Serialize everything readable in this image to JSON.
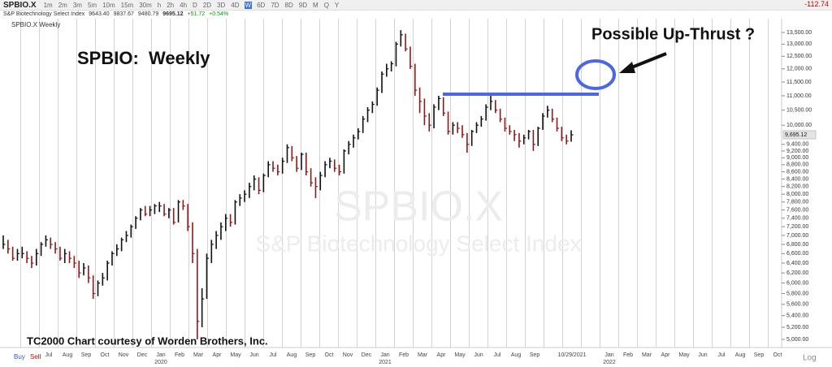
{
  "header": {
    "symbol": "SPBIO.X",
    "timeframes": [
      "1m",
      "2m",
      "3m",
      "5m",
      "10m",
      "15m",
      "30m",
      "h",
      "2h",
      "4h",
      "D",
      "2D",
      "3D",
      "4D",
      "W",
      "6D",
      "7D",
      "8D",
      "9D",
      "M",
      "Q",
      "Y"
    ],
    "selected_timeframe": "W",
    "change_right": "-112.74",
    "index_name": "S&P Biotechnology Select Index",
    "open": "9643.40",
    "high": "9837.67",
    "low": "9480.79",
    "last": "9695.12",
    "change": "+51.72",
    "change_pct": "+0.54%",
    "chart_label": "SPBIO.X Weekly"
  },
  "footer": {
    "buy": "Buy",
    "sell": "Sell",
    "scale": "Log"
  },
  "chart_data": {
    "type": "hlc",
    "log_scale": true,
    "watermark": "SPBIO.X",
    "watermark_subtitle": "S&P Biotechnology Select Index",
    "annotations": [
      "SPBIO:  Weekly",
      "Possible Up-Thrust ?",
      "TC2000 Chart courtesy of Worden Brothers, Inc."
    ],
    "up_color": "#111111",
    "down_color": "#8b1a1a",
    "high": [
      7000,
      6900,
      6750,
      6700,
      6750,
      6650,
      6550,
      6700,
      6850,
      7000,
      6950,
      6850,
      6750,
      6700,
      6650,
      6550,
      6450,
      6400,
      6350,
      6150,
      6050,
      6200,
      6450,
      6650,
      6800,
      6950,
      7100,
      7250,
      7450,
      7650,
      7700,
      7700,
      7750,
      7800,
      7750,
      7650,
      7650,
      7850,
      7850,
      7750,
      7300,
      6700,
      5900,
      6600,
      6900,
      7100,
      7300,
      7500,
      7500,
      7850,
      8000,
      8100,
      8300,
      8500,
      8450,
      8550,
      8900,
      8900,
      8800,
      9000,
      9400,
      9350,
      9050,
      9150,
      9150,
      8700,
      8450,
      8600,
      8900,
      9000,
      8950,
      8800,
      9250,
      9500,
      9700,
      9900,
      10300,
      10600,
      10800,
      11300,
      11900,
      12200,
      12300,
      13100,
      13600,
      13450,
      12900,
      12200,
      11300,
      10900,
      10400,
      10700,
      11000,
      10950,
      10450,
      10100,
      10100,
      10000,
      9750,
      9850,
      10100,
      10300,
      10700,
      11000,
      10850,
      10550,
      10250,
      10000,
      9850,
      9750,
      9700,
      9850,
      9850,
      9950,
      10400,
      10650,
      10550,
      10250,
      9950,
      9700,
      9837.67
    ],
    "low": [
      6700,
      6600,
      6450,
      6450,
      6500,
      6400,
      6300,
      6350,
      6550,
      6750,
      6700,
      6600,
      6450,
      6400,
      6400,
      6300,
      6100,
      6150,
      6000,
      5700,
      5750,
      5950,
      6050,
      6350,
      6550,
      6650,
      6850,
      6950,
      7150,
      7350,
      7450,
      7450,
      7500,
      7550,
      7450,
      7400,
      7250,
      7300,
      7600,
      7100,
      6400,
      5000,
      5200,
      5700,
      6400,
      6700,
      6900,
      7100,
      7200,
      7250,
      7700,
      7800,
      7900,
      8100,
      8000,
      8050,
      8450,
      8600,
      8500,
      8550,
      8850,
      8900,
      8600,
      8650,
      8500,
      8200,
      7900,
      8100,
      8450,
      8700,
      8600,
      8500,
      8550,
      9100,
      9300,
      9550,
      9750,
      10100,
      10400,
      10650,
      11100,
      11700,
      11900,
      12100,
      12900,
      12700,
      12000,
      11000,
      10400,
      10000,
      9800,
      9900,
      10500,
      10300,
      9700,
      9700,
      9750,
      9600,
      9150,
      9350,
      9750,
      9950,
      10150,
      10500,
      10400,
      10100,
      9800,
      9700,
      9500,
      9300,
      9400,
      9550,
      9200,
      9350,
      9850,
      10250,
      10100,
      9800,
      9500,
      9400,
      9480.79
    ],
    "close": [
      6800,
      6700,
      6500,
      6600,
      6600,
      6500,
      6400,
      6600,
      6800,
      6900,
      6800,
      6700,
      6500,
      6600,
      6500,
      6400,
      6200,
      6300,
      6100,
      5800,
      6000,
      6100,
      6400,
      6600,
      6700,
      6900,
      7000,
      7200,
      7400,
      7600,
      7500,
      7600,
      7700,
      7700,
      7500,
      7600,
      7300,
      7800,
      7700,
      7200,
      6600,
      5300,
      5700,
      6500,
      6800,
      7000,
      7200,
      7400,
      7300,
      7800,
      7900,
      8000,
      8200,
      8400,
      8100,
      8500,
      8800,
      8700,
      8600,
      8900,
      9300,
      9000,
      8700,
      9100,
      8600,
      8300,
      8200,
      8500,
      8800,
      8900,
      8700,
      8600,
      9200,
      9400,
      9600,
      9800,
      10200,
      10500,
      10700,
      11200,
      11800,
      12000,
      12200,
      13000,
      13400,
      12800,
      12100,
      11200,
      10800,
      10300,
      10000,
      10600,
      10900,
      10400,
      9800,
      10000,
      9900,
      9700,
      9400,
      9800,
      10000,
      10200,
      10600,
      10800,
      10500,
      10200,
      9900,
      9800,
      9700,
      9500,
      9600,
      9800,
      9400,
      9900,
      10300,
      10500,
      10200,
      9900,
      9600,
      9500,
      9695.12
    ],
    "last_label": "9,695.12",
    "x_labels": [
      {
        "label": "Jul"
      },
      {
        "label": "Aug"
      },
      {
        "label": "Sep"
      },
      {
        "label": "Oct"
      },
      {
        "label": "Nov"
      },
      {
        "label": "Dec"
      },
      {
        "label": "Jan",
        "year": "2020"
      },
      {
        "label": "Feb"
      },
      {
        "label": "Mar"
      },
      {
        "label": "Apr"
      },
      {
        "label": "May"
      },
      {
        "label": "Jun"
      },
      {
        "label": "Jul"
      },
      {
        "label": "Aug"
      },
      {
        "label": "Sep"
      },
      {
        "label": "Oct"
      },
      {
        "label": "Nov"
      },
      {
        "label": "Dec"
      },
      {
        "label": "Jan",
        "year": "2021"
      },
      {
        "label": "Feb"
      },
      {
        "label": "Mar"
      },
      {
        "label": "Apr"
      },
      {
        "label": "May"
      },
      {
        "label": "Jun"
      },
      {
        "label": "Jul"
      },
      {
        "label": "Aug"
      },
      {
        "label": "Sep"
      },
      {
        "label": null
      },
      {
        "label": "10/29/2021"
      },
      {
        "label": null
      },
      {
        "label": "Jan",
        "year": "2022"
      },
      {
        "label": "Feb"
      },
      {
        "label": "Mar"
      },
      {
        "label": "Apr"
      },
      {
        "label": "May"
      },
      {
        "label": "Jun"
      },
      {
        "label": "Jul"
      },
      {
        "label": "Aug"
      },
      {
        "label": "Sep"
      },
      {
        "label": "Oct"
      }
    ],
    "ylim": [
      4870,
      13860
    ],
    "yticks": [
      {
        "value": 13500,
        "label": "13,500.00"
      },
      {
        "value": 13000,
        "label": "13,000.00"
      },
      {
        "value": 12500,
        "label": "12,500.00"
      },
      {
        "value": 12000,
        "label": "12,000.00"
      },
      {
        "value": 11500,
        "label": "11,500.00"
      },
      {
        "value": 11000,
        "label": "11,000.00"
      },
      {
        "value": 10500,
        "label": "10,500.00"
      },
      {
        "value": 10000,
        "label": "10,000.00"
      },
      {
        "value": 9400,
        "label": "9,400.00"
      },
      {
        "value": 9200,
        "label": "9,200.00"
      },
      {
        "value": 9000,
        "label": "9,000.00"
      },
      {
        "value": 8800,
        "label": "8,800.00"
      },
      {
        "value": 8600,
        "label": "8,600.00"
      },
      {
        "value": 8400,
        "label": "8,400.00"
      },
      {
        "value": 8200,
        "label": "8,200.00"
      },
      {
        "value": 8000,
        "label": "8,000.00"
      },
      {
        "value": 7800,
        "label": "7,800.00"
      },
      {
        "value": 7600,
        "label": "7,600.00"
      },
      {
        "value": 7400,
        "label": "7,400.00"
      },
      {
        "value": 7200,
        "label": "7,200.00"
      },
      {
        "value": 7000,
        "label": "7,000.00"
      },
      {
        "value": 6800,
        "label": "6,800.00"
      },
      {
        "value": 6600,
        "label": "6,600.00"
      },
      {
        "value": 6400,
        "label": "6,400.00"
      },
      {
        "value": 6200,
        "label": "6,200.00"
      },
      {
        "value": 6000,
        "label": "6,000.00"
      },
      {
        "value": 5800,
        "label": "5,800.00"
      },
      {
        "value": 5600,
        "label": "5,600.00"
      },
      {
        "value": 5400,
        "label": "5,400.00"
      },
      {
        "value": 5200,
        "label": "5,200.00"
      },
      {
        "value": 5000,
        "label": "5,000.00"
      }
    ]
  }
}
